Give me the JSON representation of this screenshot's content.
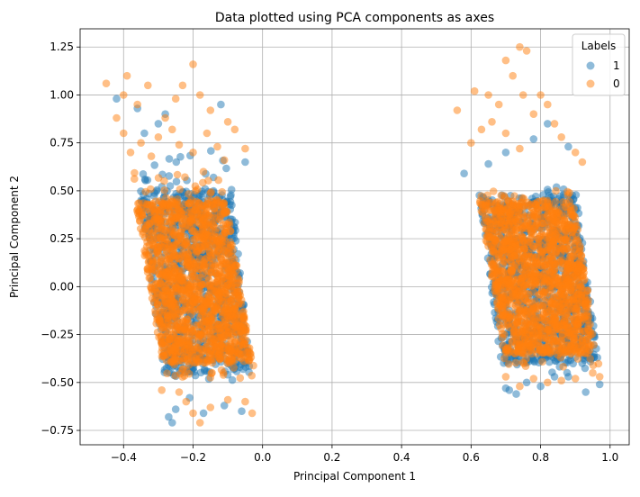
{
  "chart_data": {
    "type": "scatter",
    "title": "Data plotted using PCA components as axes",
    "xlabel": "Principal Component 1",
    "ylabel": "Principal Component 2",
    "xlim": [
      -0.525,
      1.055
    ],
    "ylim": [
      -0.825,
      1.345
    ],
    "xticks": [
      -0.4,
      -0.2,
      0.0,
      0.2,
      0.4,
      0.6,
      0.8,
      1.0
    ],
    "xtick_labels": [
      "−0.4",
      "−0.2",
      "0.0",
      "0.2",
      "0.4",
      "0.6",
      "0.8",
      "1.0"
    ],
    "yticks": [
      -0.75,
      -0.5,
      -0.25,
      0.0,
      0.25,
      0.5,
      0.75,
      1.0,
      1.25
    ],
    "ytick_labels": [
      "−0.75",
      "−0.50",
      "−0.25",
      "0.00",
      "0.25",
      "0.50",
      "0.75",
      "1.00",
      "1.25"
    ],
    "grid": true,
    "legend": {
      "title": "Labels",
      "placement": "top-right"
    },
    "series": [
      {
        "name": "1",
        "color": "#1f77b4",
        "opacity": 0.5,
        "clusters": [
          {
            "top_left": [
              -0.37,
              0.72
            ],
            "top_right": [
              -0.1,
              0.72
            ],
            "bottom_left": [
              -0.28,
              -0.52
            ],
            "bottom_right": [
              -0.03,
              -0.52
            ],
            "dense_y": [
              -0.45,
              0.5
            ]
          },
          {
            "top_left": [
              0.62,
              0.52
            ],
            "top_right": [
              0.9,
              0.52
            ],
            "bottom_left": [
              0.69,
              -0.45
            ],
            "bottom_right": [
              0.97,
              -0.45
            ],
            "dense_y": [
              -0.4,
              0.48
            ]
          }
        ],
        "points": [
          [
            -0.42,
            0.98
          ],
          [
            -0.36,
            0.93
          ],
          [
            -0.34,
            0.8
          ],
          [
            -0.3,
            0.85
          ],
          [
            -0.28,
            0.9
          ],
          [
            -0.12,
            0.95
          ],
          [
            -0.05,
            0.65
          ],
          [
            -0.21,
            -0.58
          ],
          [
            -0.25,
            -0.64
          ],
          [
            -0.27,
            -0.68
          ],
          [
            -0.26,
            -0.71
          ],
          [
            -0.17,
            -0.66
          ],
          [
            -0.11,
            -0.62
          ],
          [
            -0.06,
            -0.65
          ],
          [
            0.58,
            0.59
          ],
          [
            0.65,
            0.64
          ],
          [
            0.7,
            0.7
          ],
          [
            0.78,
            0.77
          ],
          [
            0.82,
            0.85
          ],
          [
            0.88,
            0.73
          ],
          [
            0.7,
            -0.53
          ],
          [
            0.71,
            -0.54
          ],
          [
            0.73,
            -0.56
          ],
          [
            0.76,
            -0.5
          ],
          [
            0.8,
            -0.52
          ],
          [
            0.84,
            -0.47
          ],
          [
            0.88,
            -0.47
          ],
          [
            0.93,
            -0.55
          ],
          [
            0.97,
            -0.51
          ]
        ]
      },
      {
        "name": "0",
        "color": "#ff7f0e",
        "opacity": 0.5,
        "clusters": [
          {
            "top_left": [
              -0.38,
              0.6
            ],
            "top_right": [
              -0.12,
              0.6
            ],
            "bottom_left": [
              -0.28,
              -0.48
            ],
            "bottom_right": [
              -0.02,
              -0.48
            ],
            "dense_y": [
              -0.4,
              0.45
            ]
          },
          {
            "top_left": [
              0.62,
              0.5
            ],
            "top_right": [
              0.89,
              0.5
            ],
            "bottom_left": [
              0.7,
              -0.42
            ],
            "bottom_right": [
              0.97,
              -0.42
            ],
            "dense_y": [
              -0.35,
              0.45
            ]
          }
        ],
        "points": [
          [
            -0.45,
            1.06
          ],
          [
            -0.39,
            1.1
          ],
          [
            -0.4,
            1.0
          ],
          [
            -0.33,
            1.05
          ],
          [
            -0.36,
            0.95
          ],
          [
            -0.28,
            0.88
          ],
          [
            -0.25,
            0.98
          ],
          [
            -0.23,
            1.05
          ],
          [
            -0.2,
            1.16
          ],
          [
            -0.18,
            1.0
          ],
          [
            -0.15,
            0.92
          ],
          [
            -0.1,
            0.86
          ],
          [
            -0.08,
            0.82
          ],
          [
            -0.05,
            0.72
          ],
          [
            -0.42,
            0.88
          ],
          [
            -0.4,
            0.8
          ],
          [
            -0.38,
            0.7
          ],
          [
            -0.35,
            0.75
          ],
          [
            -0.32,
            0.68
          ],
          [
            -0.3,
            0.78
          ],
          [
            -0.26,
            0.82
          ],
          [
            -0.24,
            0.74
          ],
          [
            -0.2,
            0.7
          ],
          [
            -0.16,
            0.8
          ],
          [
            -0.13,
            0.73
          ],
          [
            -0.11,
            0.66
          ],
          [
            -0.22,
            -0.6
          ],
          [
            -0.2,
            -0.66
          ],
          [
            -0.18,
            -0.71
          ],
          [
            -0.15,
            -0.63
          ],
          [
            -0.1,
            -0.59
          ],
          [
            -0.05,
            -0.6
          ],
          [
            -0.03,
            -0.66
          ],
          [
            -0.24,
            -0.55
          ],
          [
            -0.29,
            -0.54
          ],
          [
            0.56,
            0.92
          ],
          [
            0.61,
            1.02
          ],
          [
            0.65,
            1.0
          ],
          [
            0.7,
            1.18
          ],
          [
            0.72,
            1.1
          ],
          [
            0.74,
            1.25
          ],
          [
            0.76,
            1.23
          ],
          [
            0.75,
            1.0
          ],
          [
            0.78,
            0.9
          ],
          [
            0.8,
            1.0
          ],
          [
            0.82,
            0.95
          ],
          [
            0.84,
            0.85
          ],
          [
            0.86,
            0.78
          ],
          [
            0.9,
            0.7
          ],
          [
            0.92,
            0.65
          ],
          [
            0.66,
            0.86
          ],
          [
            0.7,
            0.8
          ],
          [
            0.74,
            0.72
          ],
          [
            0.68,
            0.95
          ],
          [
            0.63,
            0.82
          ],
          [
            0.6,
            0.75
          ],
          [
            0.74,
            -0.52
          ],
          [
            0.78,
            -0.48
          ],
          [
            0.82,
            -0.5
          ],
          [
            0.86,
            -0.49
          ],
          [
            0.9,
            -0.48
          ],
          [
            0.95,
            -0.45
          ],
          [
            0.97,
            -0.47
          ],
          [
            0.7,
            -0.47
          ]
        ]
      }
    ]
  }
}
